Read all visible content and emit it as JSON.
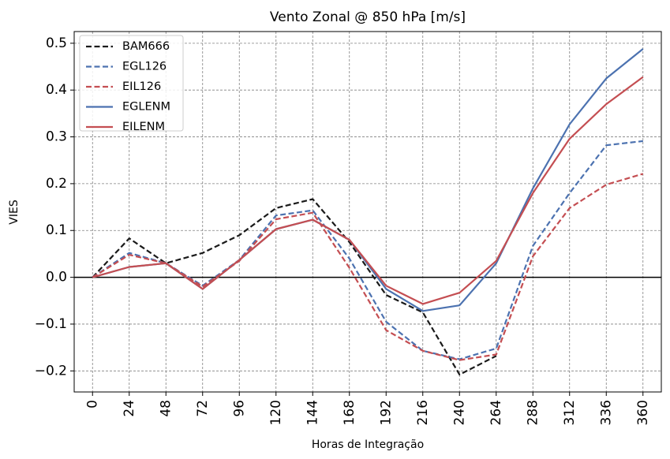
{
  "chart_data": {
    "type": "line",
    "title": "Vento Zonal @ 850 hPa [m/s]",
    "xlabel": "Horas de Integração",
    "ylabel": "VIES",
    "x": [
      0,
      24,
      48,
      72,
      96,
      120,
      144,
      168,
      192,
      216,
      240,
      264,
      288,
      312,
      336,
      360
    ],
    "x_tick_labels": [
      "0",
      "24",
      "48",
      "72",
      "96",
      "120",
      "144",
      "168",
      "192",
      "216",
      "240",
      "264",
      "288",
      "312",
      "336",
      "360"
    ],
    "xlim": [
      -12,
      372
    ],
    "ylim": [
      -0.245,
      0.525
    ],
    "y_ticks": [
      -0.2,
      -0.1,
      0.0,
      0.1,
      0.2,
      0.3,
      0.4,
      0.5
    ],
    "y_tick_labels": [
      "−0.2",
      "−0.1",
      "0.0",
      "0.1",
      "0.2",
      "0.3",
      "0.4",
      "0.5"
    ],
    "grid": true,
    "legend_position": "top-left",
    "zero_line": true,
    "series": [
      {
        "name": "BAM666",
        "color": "#1a1a1a",
        "dashed": true,
        "values": [
          0.0,
          0.083,
          0.03,
          0.052,
          0.09,
          0.148,
          0.167,
          0.075,
          -0.038,
          -0.075,
          -0.208,
          -0.168,
          null,
          null,
          null,
          null
        ]
      },
      {
        "name": "EGL126",
        "color": "#4c72b0",
        "dashed": true,
        "values": [
          0.0,
          0.052,
          0.03,
          -0.018,
          0.037,
          0.132,
          0.143,
          0.04,
          -0.095,
          -0.157,
          -0.175,
          -0.152,
          0.067,
          0.18,
          0.282,
          0.291
        ]
      },
      {
        "name": "EIL126",
        "color": "#c44e52",
        "dashed": true,
        "values": [
          0.0,
          0.048,
          0.03,
          -0.02,
          0.035,
          0.124,
          0.138,
          0.02,
          -0.113,
          -0.157,
          -0.177,
          -0.165,
          0.045,
          0.148,
          0.198,
          0.221
        ]
      },
      {
        "name": "EGLENM",
        "color": "#4c72b0",
        "dashed": false,
        "values": [
          0.0,
          0.022,
          0.03,
          -0.025,
          0.037,
          0.103,
          0.123,
          0.08,
          -0.025,
          -0.072,
          -0.06,
          0.03,
          0.19,
          0.327,
          0.425,
          0.488
        ]
      },
      {
        "name": "EILENM",
        "color": "#c44e52",
        "dashed": false,
        "values": [
          0.0,
          0.022,
          0.03,
          -0.025,
          0.037,
          0.103,
          0.123,
          0.08,
          -0.018,
          -0.057,
          -0.033,
          0.035,
          0.18,
          0.296,
          0.37,
          0.428
        ]
      }
    ]
  }
}
